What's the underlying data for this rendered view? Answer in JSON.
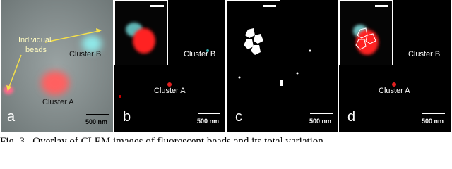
{
  "panels": [
    {
      "letter": "a",
      "annotation": [
        "Individual",
        "beads"
      ],
      "clusters": [
        "Cluster B",
        "Cluster A"
      ],
      "scale_bar": "500 nm"
    },
    {
      "letter": "b",
      "clusters": [
        "Cluster B",
        "Cluster A"
      ],
      "scale_bar": "500 nm"
    },
    {
      "letter": "c",
      "scale_bar": "500 nm"
    },
    {
      "letter": "d",
      "clusters": [
        "Cluster B",
        "Cluster A"
      ],
      "scale_bar": "500 nm"
    }
  ],
  "caption": "Fig. 3.  Overlay of CLEM images of fluorescent beads and its total variation"
}
